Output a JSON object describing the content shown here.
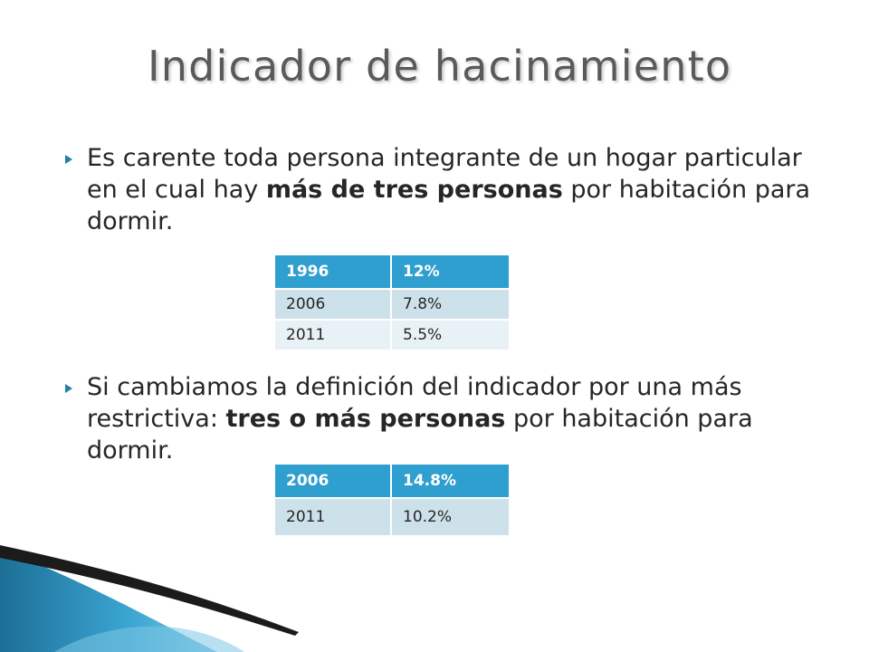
{
  "slide": {
    "title": "Indicador de hacinamiento",
    "bullet1": {
      "before": "Es carente toda persona integrante de un hogar particular en el cual hay ",
      "bold": "más de tres personas",
      "after": " por habitación para dormir."
    },
    "table1": {
      "header": [
        "1996",
        "12%"
      ],
      "rows": [
        [
          "2006",
          "7.8%"
        ],
        [
          "2011",
          "5.5%"
        ]
      ]
    },
    "bullet2": {
      "before": "Si cambiamos la definición del indicador por una más restrictiva: ",
      "bold": "tres o más personas",
      "after": " por habitación para dormir."
    },
    "table2": {
      "header": [
        "2006",
        "14.8%"
      ],
      "rows": [
        [
          "2011",
          "10.2%"
        ]
      ]
    }
  },
  "colors": {
    "accent": "#2f9fcf",
    "row_dark": "#cde1ea",
    "row_light": "#e8f1f5",
    "title": "#5a5a5a",
    "decoration_blue": "#1f7fa6"
  }
}
